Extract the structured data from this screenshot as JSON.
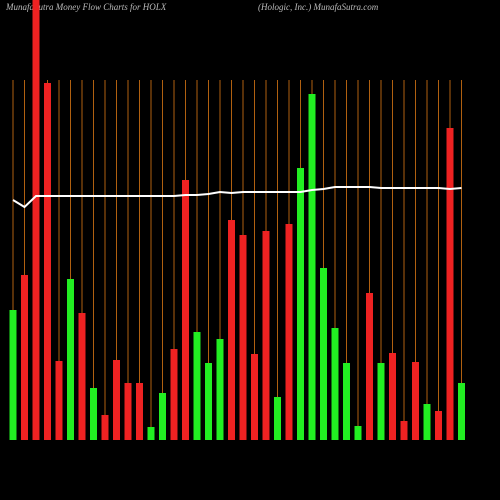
{
  "chart_data": {
    "type": "bar",
    "title": "MunafaSutra  Money Flow  Charts for HOLX",
    "subtitle": "(Hologic, Inc.) MunafaSutra.com",
    "categories": [
      null,
      null,
      null,
      null,
      null,
      null,
      null,
      null,
      null,
      null,
      null,
      null,
      null,
      null,
      null,
      null,
      null,
      null,
      null,
      null,
      null,
      null,
      null,
      null,
      null,
      null,
      null,
      null,
      null,
      null,
      null,
      null,
      null,
      null,
      null,
      null,
      null,
      null,
      null,
      null
    ],
    "values": [
      130,
      165,
      440,
      357,
      79,
      161,
      127,
      52,
      25,
      80,
      57,
      57,
      13,
      47,
      91,
      260,
      108,
      77,
      101,
      220,
      205,
      86,
      209,
      43,
      216,
      272,
      346,
      172,
      112,
      77,
      14,
      147,
      77,
      87,
      19,
      78,
      36,
      29,
      312,
      57
    ],
    "colors": [
      "#22ee22",
      "#ee2222",
      "#ee2222",
      "#ee2222",
      "#ee2222",
      "#22ee22",
      "#ee2222",
      "#22ee22",
      "#ee2222",
      "#ee2222",
      "#ee2222",
      "#ee2222",
      "#22ee22",
      "#22ee22",
      "#ee2222",
      "#ee2222",
      "#22ee22",
      "#22ee22",
      "#22ee22",
      "#ee2222",
      "#ee2222",
      "#ee2222",
      "#ee2222",
      "#22ee22",
      "#ee2222",
      "#22ee22",
      "#22ee22",
      "#22ee22",
      "#22ee22",
      "#22ee22",
      "#22ee22",
      "#ee2222",
      "#22ee22",
      "#ee2222",
      "#ee2222",
      "#ee2222",
      "#22ee22",
      "#ee2222",
      "#ee2222",
      "#22ee22"
    ],
    "line": {
      "color": "#ffffff",
      "values": [
        240,
        233,
        244,
        244,
        244,
        244,
        244,
        244,
        244,
        244,
        244,
        244,
        244,
        244,
        244,
        245,
        245,
        246,
        248,
        247,
        248,
        248,
        248,
        248,
        248,
        248,
        250,
        251,
        253,
        253,
        253,
        253,
        252,
        252,
        252,
        252,
        252,
        252,
        251,
        252
      ]
    },
    "ylim": [
      0,
      440
    ],
    "grid_color": "#b06010"
  }
}
